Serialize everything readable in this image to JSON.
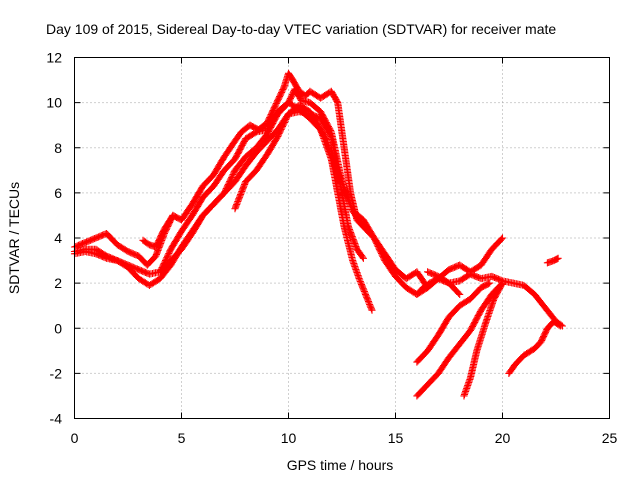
{
  "chart_data": {
    "type": "scatter",
    "title": "Day 109 of 2015, Sidereal Day-to-day VTEC variation (SDTVAR) for receiver mate",
    "xlabel": "GPS time / hours",
    "ylabel": "SDTVAR / TECUs",
    "xlim": [
      0,
      25
    ],
    "ylim": [
      -4,
      12
    ],
    "xticks": [
      "0",
      "5",
      "10",
      "15",
      "20",
      "25"
    ],
    "yticks": [
      "-4",
      "-2",
      "0",
      "2",
      "4",
      "6",
      "8",
      "10",
      "12"
    ],
    "grid": true,
    "marker": "+",
    "marker_color": "#ff0000",
    "series": [
      {
        "x": [
          0.0,
          0.5,
          1.0,
          1.5,
          2.0,
          2.5,
          3.0,
          3.4,
          3.8,
          4.2,
          4.6,
          5.0,
          5.5,
          6.0,
          6.5,
          7.0,
          7.5,
          7.8,
          8.2,
          8.6,
          9.0,
          9.4,
          9.8,
          10.0,
          10.2,
          10.5,
          10.8,
          11.0,
          11.5,
          12.0,
          12.3,
          12.6,
          12.9,
          13.2,
          13.5
        ],
        "y": [
          3.6,
          3.8,
          4.0,
          4.2,
          3.7,
          3.4,
          3.2,
          2.8,
          3.2,
          4.2,
          5.0,
          4.8,
          5.5,
          6.3,
          6.8,
          7.6,
          8.3,
          8.7,
          9.0,
          8.8,
          9.1,
          9.9,
          10.7,
          11.3,
          11.0,
          10.5,
          10.3,
          10.5,
          10.2,
          10.5,
          10.0,
          8.0,
          6.0,
          4.8,
          4.5
        ]
      },
      {
        "x": [
          0.0,
          0.5,
          1.0,
          1.5,
          2.0,
          2.5,
          3.0,
          3.5,
          4.0,
          4.5,
          5.0,
          5.5,
          6.0,
          6.5,
          7.0,
          7.5,
          8.0,
          8.5,
          9.0,
          9.5,
          10.0,
          10.3,
          10.6,
          11.0,
          11.5,
          12.0,
          12.5,
          13.0,
          13.5,
          14.0,
          14.5,
          15.0,
          15.5,
          16.0,
          16.5
        ],
        "y": [
          3.4,
          3.5,
          3.5,
          3.2,
          3.0,
          2.8,
          2.6,
          2.4,
          2.5,
          3.5,
          4.3,
          5.0,
          5.8,
          6.3,
          7.0,
          7.5,
          8.4,
          8.7,
          8.8,
          9.6,
          10.0,
          10.6,
          10.1,
          10.0,
          9.6,
          8.7,
          6.5,
          5.2,
          4.8,
          4.0,
          3.3,
          2.6,
          2.2,
          2.5,
          1.8
        ]
      },
      {
        "x": [
          0.0,
          0.5,
          1.0,
          1.5,
          2.0,
          2.5,
          3.0,
          3.5,
          4.0,
          4.5,
          5.0,
          5.5,
          6.0,
          6.5,
          7.0,
          7.5,
          8.0,
          8.5,
          9.0,
          9.5,
          10.0,
          10.5,
          11.0,
          11.5,
          12.0,
          12.5,
          13.0,
          13.5,
          14.0,
          14.5,
          15.0,
          15.5,
          16.0,
          16.5,
          17.0,
          17.5,
          18.0,
          18.5,
          19.0,
          19.5,
          20.0
        ],
        "y": [
          3.3,
          3.4,
          3.3,
          3.1,
          3.0,
          2.7,
          2.2,
          1.9,
          2.2,
          2.8,
          3.6,
          4.3,
          5.0,
          5.5,
          6.0,
          7.0,
          7.6,
          8.0,
          8.6,
          9.5,
          10.0,
          9.7,
          9.3,
          8.8,
          7.5,
          6.5,
          5.2,
          4.5,
          4.0,
          3.0,
          2.3,
          1.8,
          1.5,
          1.8,
          2.2,
          2.6,
          2.8,
          2.5,
          2.8,
          3.5,
          4.0
        ]
      },
      {
        "x": [
          4.0,
          4.5,
          5.0,
          5.5,
          6.0,
          6.5,
          7.0,
          7.5,
          8.0,
          8.5,
          9.0,
          9.5,
          10.0,
          10.5,
          11.0,
          11.5,
          11.8,
          12.0,
          12.3,
          12.6,
          13.0,
          13.3,
          13.6,
          13.9
        ],
        "y": [
          2.5,
          3.0,
          3.5,
          4.2,
          5.0,
          5.5,
          6.0,
          6.5,
          7.2,
          7.8,
          8.3,
          8.8,
          9.5,
          9.9,
          9.6,
          8.8,
          8.3,
          7.5,
          6.0,
          4.5,
          3.0,
          2.2,
          1.5,
          0.8
        ]
      },
      {
        "x": [
          7.5,
          8.0,
          8.5,
          9.0,
          9.5,
          10.0,
          10.5,
          11.0,
          11.5,
          12.0,
          12.4,
          12.8,
          13.2,
          13.5
        ],
        "y": [
          5.3,
          6.5,
          7.0,
          7.7,
          8.5,
          9.5,
          9.6,
          9.5,
          9.3,
          8.5,
          6.5,
          4.5,
          3.5,
          3.1
        ]
      },
      {
        "x": [
          3.2,
          3.5,
          3.8,
          4.0,
          4.2,
          4.6
        ],
        "y": [
          3.9,
          3.7,
          3.6,
          4.0,
          4.4,
          5.0
        ]
      },
      {
        "x": [
          16.0,
          16.3,
          16.6,
          17.0,
          17.5,
          18.0,
          18.5,
          19.0,
          19.5,
          20.0,
          20.5,
          21.0,
          21.5,
          22.0,
          22.5,
          22.8
        ],
        "y": [
          1.5,
          1.8,
          2.0,
          2.2,
          2.0,
          2.1,
          2.4,
          2.2,
          2.3,
          2.1,
          2.0,
          1.9,
          1.5,
          0.9,
          0.3,
          0.1
        ]
      },
      {
        "x": [
          16.0,
          16.5,
          17.0,
          17.5,
          18.0,
          18.5,
          19.0,
          19.4
        ],
        "y": [
          -1.5,
          -1.0,
          -0.3,
          0.5,
          1.0,
          1.3,
          1.8,
          2.0
        ]
      },
      {
        "x": [
          16.0,
          16.5,
          17.0,
          17.5,
          18.0,
          18.5,
          19.0,
          19.5,
          20.0
        ],
        "y": [
          -3.0,
          -2.5,
          -2.0,
          -1.3,
          -0.7,
          -0.1,
          0.8,
          1.5,
          2.0
        ]
      },
      {
        "x": [
          18.2,
          18.5,
          18.8,
          19.2,
          19.6,
          20.0
        ],
        "y": [
          -3.0,
          -2.2,
          -1.0,
          0.2,
          1.3,
          2.0
        ]
      },
      {
        "x": [
          20.3,
          20.6,
          21.0,
          21.5,
          21.8,
          22.1,
          22.4,
          22.7
        ],
        "y": [
          -2.0,
          -1.6,
          -1.2,
          -0.9,
          -0.6,
          0.0,
          0.3,
          0.1
        ]
      },
      {
        "x": [
          22.1,
          22.4,
          22.6
        ],
        "y": [
          2.9,
          3.0,
          3.1
        ]
      },
      {
        "x": [
          16.5,
          17.0,
          17.5,
          18.0
        ],
        "y": [
          2.5,
          2.3,
          2.0,
          1.5
        ]
      }
    ]
  }
}
